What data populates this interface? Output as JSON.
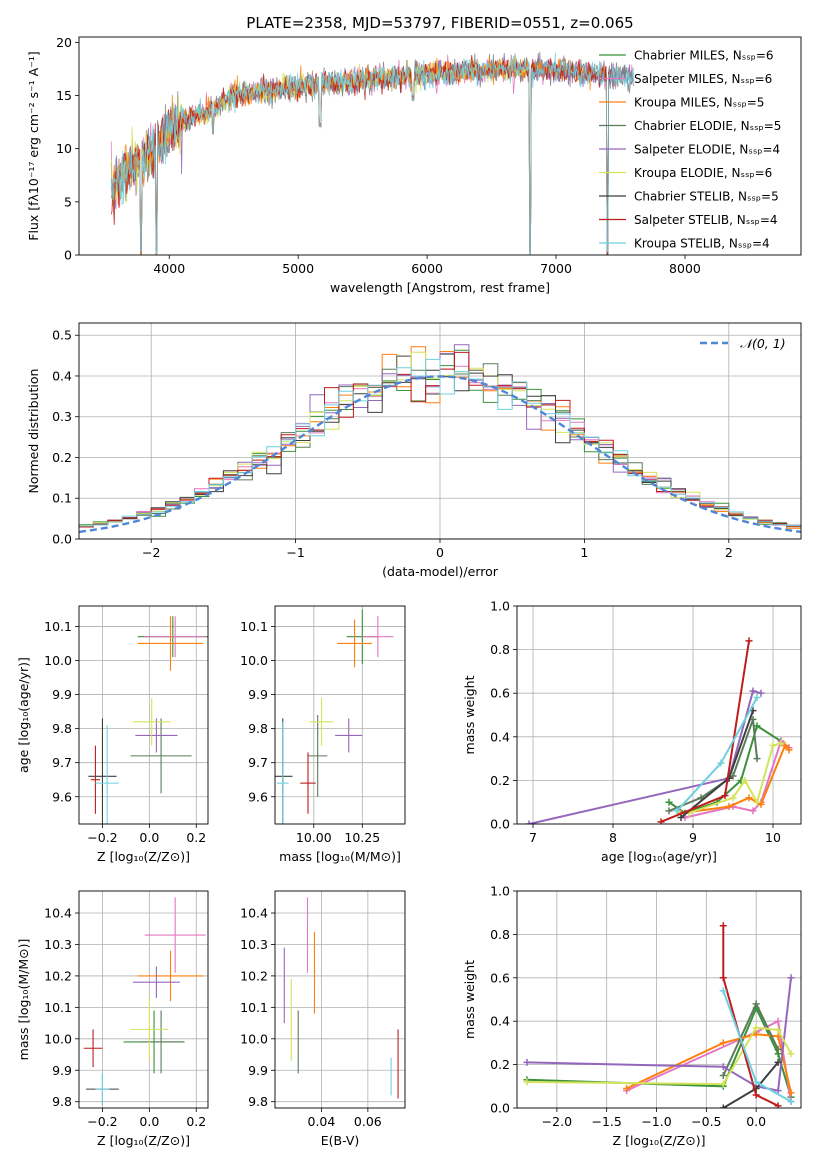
{
  "legend_colors": [
    "#3a923a",
    "#e377c2",
    "#ff7f0e",
    "#5b7c5b",
    "#9467bd",
    "#d4e35b",
    "#3f3f3f",
    "#c01c1c",
    "#6fd0e0"
  ],
  "chart_data": [
    {
      "id": "spectrum",
      "type": "line",
      "title": "PLATE=2358, MJD=53797, FIBERID=0551, z=0.065",
      "xlabel": "wavelength [Angstrom, rest frame]",
      "ylabel": "Flux [fλ10⁻¹⁷ erg cm⁻² s⁻¹ A⁻¹]",
      "xlim": [
        3300,
        8900
      ],
      "ylim": [
        0,
        20.5
      ],
      "xticks": [
        4000,
        5000,
        6000,
        7000,
        8000
      ],
      "yticks": [
        0,
        5,
        10,
        15,
        20
      ],
      "legend_position": "upper right",
      "legend": [
        "Chabrier MILES, Nₛₛₚ=6",
        "Salpeter MILES, Nₛₛₚ=6",
        "Kroupa MILES, Nₛₛₚ=5",
        "Chabrier ELODIE, Nₛₛₚ=5",
        "Salpeter ELODIE, Nₛₛₚ=4",
        "Kroupa ELODIE, Nₛₛₚ=6",
        "Chabrier STELIB, Nₛₛₚ=5",
        "Salpeter STELIB, Nₛₛₚ=4",
        "Kroupa STELIB, Nₛₛₚ=4"
      ],
      "continuum": {
        "x": [
          3550,
          3650,
          3800,
          3950,
          4100,
          4300,
          4500,
          4800,
          5100,
          5400,
          5800,
          6200,
          6600,
          7000,
          7400,
          7600
        ],
        "y": [
          6,
          7.5,
          9,
          11,
          12.5,
          13.5,
          15,
          15.5,
          16,
          16.3,
          16.8,
          17.2,
          17.5,
          17.4,
          16.8,
          16.8
        ]
      },
      "dips": [
        {
          "x": 3780,
          "y": 0
        },
        {
          "x": 3900,
          "y": 0
        },
        {
          "x": 4340,
          "y": 11.2
        },
        {
          "x": 5170,
          "y": 12
        },
        {
          "x": 5890,
          "y": 14.5
        },
        {
          "x": 6800,
          "y": 0
        },
        {
          "x": 7400,
          "y": 0
        }
      ]
    },
    {
      "id": "residuals",
      "type": "step",
      "xlabel": "(data-model)/error",
      "ylabel": "Normed distribution",
      "xlim": [
        -2.5,
        2.5
      ],
      "ylim": [
        0,
        0.53
      ],
      "xticks": [
        -2,
        -1,
        0,
        1,
        2
      ],
      "xticklabels": [
        "−2",
        "−1",
        "0",
        "1",
        "2"
      ],
      "yticks": [
        0.0,
        0.1,
        0.2,
        0.3,
        0.4,
        0.5
      ],
      "legend": [
        "𝒩(0, 1)"
      ],
      "legend_position": "upper right",
      "bin_width": 0.1,
      "gaussian": {
        "mu": 0,
        "sigma": 1
      }
    },
    {
      "id": "age-vs-Z",
      "type": "errorbar",
      "xlabel": "Z [log₁₀(Z/Z⊙)]",
      "ylabel": "age  [log₁₀(age/yr)]",
      "xlim": [
        -0.3,
        0.25
      ],
      "ylim": [
        9.52,
        10.16
      ],
      "xticks": [
        -0.2,
        0.0,
        0.2
      ],
      "xticklabels": [
        "−0.2",
        "0.0",
        "0.2"
      ],
      "yticks": [
        9.6,
        9.7,
        9.8,
        9.9,
        10.0,
        10.1
      ],
      "points": [
        {
          "x": 0.1,
          "y": 10.07,
          "xerr": 0.15,
          "yerr": 0.06,
          "c": 0
        },
        {
          "x": 0.11,
          "y": 10.07,
          "xerr": 0.13,
          "yerr": 0.06,
          "c": 1
        },
        {
          "x": 0.09,
          "y": 10.05,
          "xerr": 0.14,
          "yerr": 0.08,
          "c": 2
        },
        {
          "x": 0.05,
          "y": 9.72,
          "xerr": 0.13,
          "yerr": 0.11,
          "c": 3
        },
        {
          "x": 0.03,
          "y": 9.78,
          "xerr": 0.09,
          "yerr": 0.05,
          "c": 4
        },
        {
          "x": 0.01,
          "y": 9.82,
          "xerr": 0.08,
          "yerr": 0.07,
          "c": 5
        },
        {
          "x": -0.2,
          "y": 9.66,
          "xerr": 0.06,
          "yerr": 0.17,
          "c": 6
        },
        {
          "x": -0.23,
          "y": 9.65,
          "xerr": 0.02,
          "yerr": 0.1,
          "c": 7
        },
        {
          "x": -0.18,
          "y": 9.64,
          "xerr": 0.05,
          "yerr": 0.17,
          "c": 8
        }
      ]
    },
    {
      "id": "age-vs-mass",
      "type": "errorbar",
      "xlabel": "mass [log₁₀(M/M⊙)]",
      "ylabel": "",
      "xlim": [
        9.8,
        10.47
      ],
      "ylim": [
        9.52,
        10.16
      ],
      "xticks": [
        10.0,
        10.25
      ],
      "xticklabels": [
        "10.00",
        "10.25"
      ],
      "yticks": [
        9.6,
        9.7,
        9.8,
        9.9,
        10.0,
        10.1
      ],
      "points": [
        {
          "x": 10.25,
          "y": 10.07,
          "xerr": 0.08,
          "yerr": 0.08,
          "c": 0
        },
        {
          "x": 10.33,
          "y": 10.07,
          "xerr": 0.08,
          "yerr": 0.06,
          "c": 1
        },
        {
          "x": 10.21,
          "y": 10.05,
          "xerr": 0.09,
          "yerr": 0.07,
          "c": 2
        },
        {
          "x": 10.02,
          "y": 9.72,
          "xerr": 0.05,
          "yerr": 0.12,
          "c": 3
        },
        {
          "x": 10.18,
          "y": 9.78,
          "xerr": 0.07,
          "yerr": 0.05,
          "c": 4
        },
        {
          "x": 10.04,
          "y": 9.82,
          "xerr": 0.06,
          "yerr": 0.07,
          "c": 5
        },
        {
          "x": 9.84,
          "y": 9.66,
          "xerr": 0.05,
          "yerr": 0.17,
          "c": 6
        },
        {
          "x": 9.97,
          "y": 9.64,
          "xerr": 0.04,
          "yerr": 0.09,
          "c": 7
        },
        {
          "x": 9.84,
          "y": 9.64,
          "xerr": 0.03,
          "yerr": 0.18,
          "c": 8
        }
      ]
    },
    {
      "id": "weight-vs-age",
      "type": "line",
      "xlabel": "age  [log₁₀(age/yr)]",
      "ylabel": "mass weight",
      "xlim": [
        6.8,
        10.35
      ],
      "ylim": [
        0,
        1.0
      ],
      "xticks": [
        7,
        8,
        9,
        10
      ],
      "yticks": [
        0.0,
        0.2,
        0.4,
        0.6,
        0.8,
        1.0
      ],
      "series": [
        {
          "c": 0,
          "x": [
            8.7,
            8.9,
            9.3,
            9.6,
            9.8,
            10.1
          ],
          "y": [
            0.1,
            0.05,
            0.1,
            0.2,
            0.45,
            0.38
          ]
        },
        {
          "c": 1,
          "x": [
            8.9,
            9.5,
            9.75,
            9.85,
            10.1,
            10.2
          ],
          "y": [
            0.03,
            0.08,
            0.06,
            0.1,
            0.38,
            0.35
          ]
        },
        {
          "c": 2,
          "x": [
            8.85,
            9.45,
            9.7,
            9.85,
            10.15,
            10.2
          ],
          "y": [
            0.05,
            0.08,
            0.12,
            0.09,
            0.36,
            0.34
          ]
        },
        {
          "c": 3,
          "x": [
            8.7,
            9.1,
            9.5,
            9.75,
            9.8
          ],
          "y": [
            0.06,
            0.12,
            0.22,
            0.48,
            0.3
          ]
        },
        {
          "c": 4,
          "x": [
            6.95,
            9.45,
            9.75,
            9.85
          ],
          "y": [
            0.0,
            0.21,
            0.61,
            0.6
          ]
        },
        {
          "c": 5,
          "x": [
            8.95,
            9.5,
            9.65,
            9.8,
            10.0,
            10.1
          ],
          "y": [
            0.05,
            0.12,
            0.2,
            0.1,
            0.36,
            0.37
          ]
        },
        {
          "c": 6,
          "x": [
            8.85,
            9.45,
            9.75
          ],
          "y": [
            0.03,
            0.21,
            0.52
          ]
        },
        {
          "c": 7,
          "x": [
            8.6,
            9.4,
            9.7
          ],
          "y": [
            0.01,
            0.13,
            0.84
          ]
        },
        {
          "c": 8,
          "x": [
            8.8,
            9.35,
            9.8
          ],
          "y": [
            0.06,
            0.28,
            0.58
          ]
        }
      ]
    },
    {
      "id": "mass-vs-Z",
      "type": "errorbar",
      "xlabel": "Z [log₁₀(Z/Z⊙)]",
      "ylabel": "mass [log₁₀(M/M⊙)]",
      "xlim": [
        -0.3,
        0.25
      ],
      "ylim": [
        9.78,
        10.47
      ],
      "xticks": [
        -0.2,
        0.0,
        0.2
      ],
      "xticklabels": [
        "−0.2",
        "0.0",
        "0.2"
      ],
      "yticks": [
        9.8,
        9.9,
        10.0,
        10.1,
        10.2,
        10.3,
        10.4
      ],
      "points": [
        {
          "x": 0.02,
          "y": 9.99,
          "xerr": 0.13,
          "yerr": 0.1,
          "c": 0
        },
        {
          "x": 0.11,
          "y": 10.33,
          "xerr": 0.13,
          "yerr": 0.12,
          "c": 1
        },
        {
          "x": 0.09,
          "y": 10.2,
          "xerr": 0.14,
          "yerr": 0.08,
          "c": 2
        },
        {
          "x": 0.05,
          "y": 9.99,
          "xerr": 0.09,
          "yerr": 0.1,
          "c": 3
        },
        {
          "x": 0.03,
          "y": 10.18,
          "xerr": 0.1,
          "yerr": 0.05,
          "c": 4
        },
        {
          "x": 0.0,
          "y": 10.03,
          "xerr": 0.08,
          "yerr": 0.1,
          "c": 5
        },
        {
          "x": -0.2,
          "y": 9.84,
          "xerr": 0.07,
          "yerr": 0.05,
          "c": 6
        },
        {
          "x": -0.24,
          "y": 9.97,
          "xerr": 0.04,
          "yerr": 0.06,
          "c": 7
        },
        {
          "x": -0.2,
          "y": 9.84,
          "xerr": 0.03,
          "yerr": 0.05,
          "c": 8
        }
      ]
    },
    {
      "id": "mass-vs-EBV",
      "type": "errorbar",
      "xlabel": "E(B-V)",
      "ylabel": "",
      "xlim": [
        0.02,
        0.076
      ],
      "ylim": [
        9.78,
        10.47
      ],
      "xticks": [
        0.04,
        0.06
      ],
      "xticklabels": [
        "0.04",
        "0.06"
      ],
      "yticks": [
        9.8,
        9.9,
        10.0,
        10.1,
        10.2,
        10.3,
        10.4
      ],
      "points": [
        {
          "x": 0.037,
          "y": 10.21,
          "xerr": 0.0,
          "yerr": 0.13,
          "c": 2
        },
        {
          "x": 0.034,
          "y": 10.33,
          "xerr": 0.0,
          "yerr": 0.12,
          "c": 1
        },
        {
          "x": 0.03,
          "y": 9.99,
          "xerr": 0.0,
          "yerr": 0.1,
          "c": 3
        },
        {
          "x": 0.024,
          "y": 10.17,
          "xerr": 0.0,
          "yerr": 0.12,
          "c": 4
        },
        {
          "x": 0.027,
          "y": 10.06,
          "xerr": 0.0,
          "yerr": 0.13,
          "c": 5
        },
        {
          "x": 0.073,
          "y": 9.92,
          "xerr": 0.0,
          "yerr": 0.11,
          "c": 7
        },
        {
          "x": 0.07,
          "y": 9.88,
          "xerr": 0.0,
          "yerr": 0.06,
          "c": 8
        }
      ]
    },
    {
      "id": "weight-vs-Z",
      "type": "line",
      "xlabel": "Z [log₁₀(Z/Z⊙)]",
      "ylabel": "mass weight",
      "xlim": [
        -2.4,
        0.45
      ],
      "ylim": [
        0,
        1.0
      ],
      "xticks": [
        -2.0,
        -1.5,
        -1.0,
        -0.5,
        0.0
      ],
      "xticklabels": [
        "−2.0",
        "−1.5",
        "−1.0",
        "−0.5",
        "0.0"
      ],
      "yticks": [
        0.0,
        0.2,
        0.4,
        0.6,
        0.8,
        1.0
      ],
      "series": [
        {
          "c": 0,
          "x": [
            -2.3,
            -0.33,
            0.0,
            0.22,
            0.35
          ],
          "y": [
            0.13,
            0.1,
            0.46,
            0.25,
            0.05
          ]
        },
        {
          "c": 1,
          "x": [
            -1.3,
            0.0,
            0.22,
            0.35
          ],
          "y": [
            0.08,
            0.35,
            0.4,
            0.03
          ]
        },
        {
          "c": 2,
          "x": [
            -1.3,
            -0.33,
            0.0,
            0.22,
            0.35
          ],
          "y": [
            0.09,
            0.3,
            0.34,
            0.33,
            0.07
          ]
        },
        {
          "c": 3,
          "x": [
            -0.33,
            0.0,
            0.22
          ],
          "y": [
            0.15,
            0.48,
            0.27
          ]
        },
        {
          "c": 4,
          "x": [
            -2.3,
            -0.33,
            0.0,
            0.22,
            0.35
          ],
          "y": [
            0.21,
            0.19,
            0.1,
            0.08,
            0.6
          ]
        },
        {
          "c": 5,
          "x": [
            -2.3,
            -0.33,
            0.0,
            0.22,
            0.35
          ],
          "y": [
            0.12,
            0.11,
            0.37,
            0.36,
            0.25
          ]
        },
        {
          "c": 6,
          "x": [
            -0.33,
            0.0,
            0.22
          ],
          "y": [
            0.0,
            0.09,
            0.21
          ]
        },
        {
          "c": 7,
          "x": [
            -0.33,
            -0.33,
            0.0,
            0.22
          ],
          "y": [
            0.84,
            0.6,
            0.06,
            0.01
          ]
        },
        {
          "c": 8,
          "x": [
            -0.33,
            0.0,
            0.35
          ],
          "y": [
            0.54,
            0.12,
            0.03
          ]
        }
      ]
    }
  ]
}
